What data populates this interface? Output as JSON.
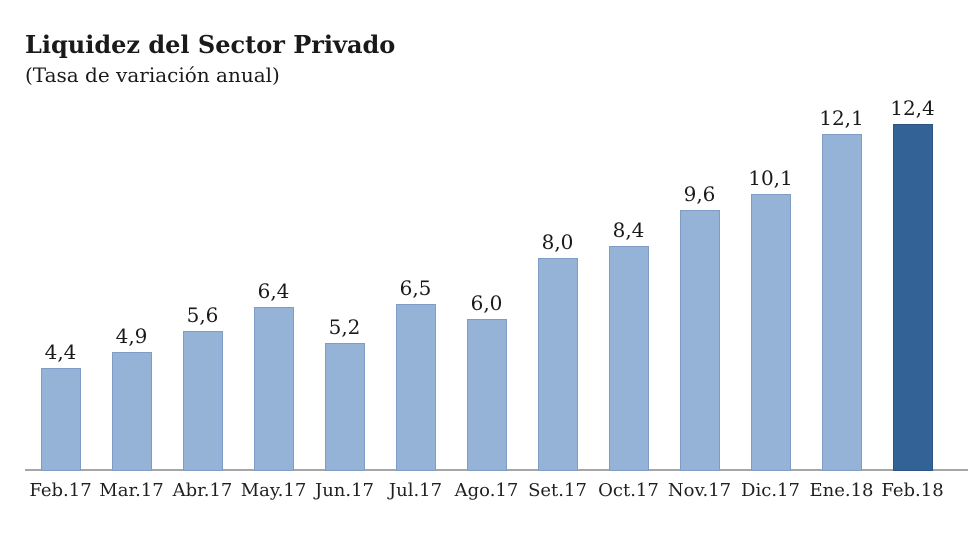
{
  "title": "Liquidez del Sector Privado",
  "subtitle": "(Tasa de variación anual)",
  "colors": {
    "bar_fill": "#95b3d7",
    "bar_border": "#7e9cc5",
    "bar_highlight_fill": "#336296",
    "bar_highlight_border": "#2c5585",
    "axis_line": "#a6a6a6",
    "text": "#1a1a1a",
    "background": "#ffffff"
  },
  "chart_data": {
    "type": "bar",
    "title": "Liquidez del Sector Privado",
    "subtitle": "(Tasa de variación anual)",
    "categories": [
      "Feb.17",
      "Mar.17",
      "Abr.17",
      "May.17",
      "Jun.17",
      "Jul.17",
      "Ago.17",
      "Set.17",
      "Oct.17",
      "Nov.17",
      "Dic.17",
      "Ene.18",
      "Feb.18"
    ],
    "values": [
      4.4,
      4.9,
      5.6,
      6.4,
      5.2,
      6.5,
      6.0,
      8.0,
      8.4,
      9.6,
      10.1,
      12.1,
      12.4
    ],
    "value_labels": [
      "4,4",
      "4,9",
      "5,6",
      "6,4",
      "5,2",
      "6,5",
      "6,0",
      "8,0",
      "8,4",
      "9,6",
      "10,1",
      "12,1",
      "12,4"
    ],
    "highlight_index": 12,
    "xlabel": "",
    "ylabel": "",
    "ylim": [
      1.0,
      13.4
    ],
    "grid": false,
    "legend": false,
    "y_axis_ticks_visible": false,
    "data_labels": true,
    "decimal_separator": ","
  }
}
